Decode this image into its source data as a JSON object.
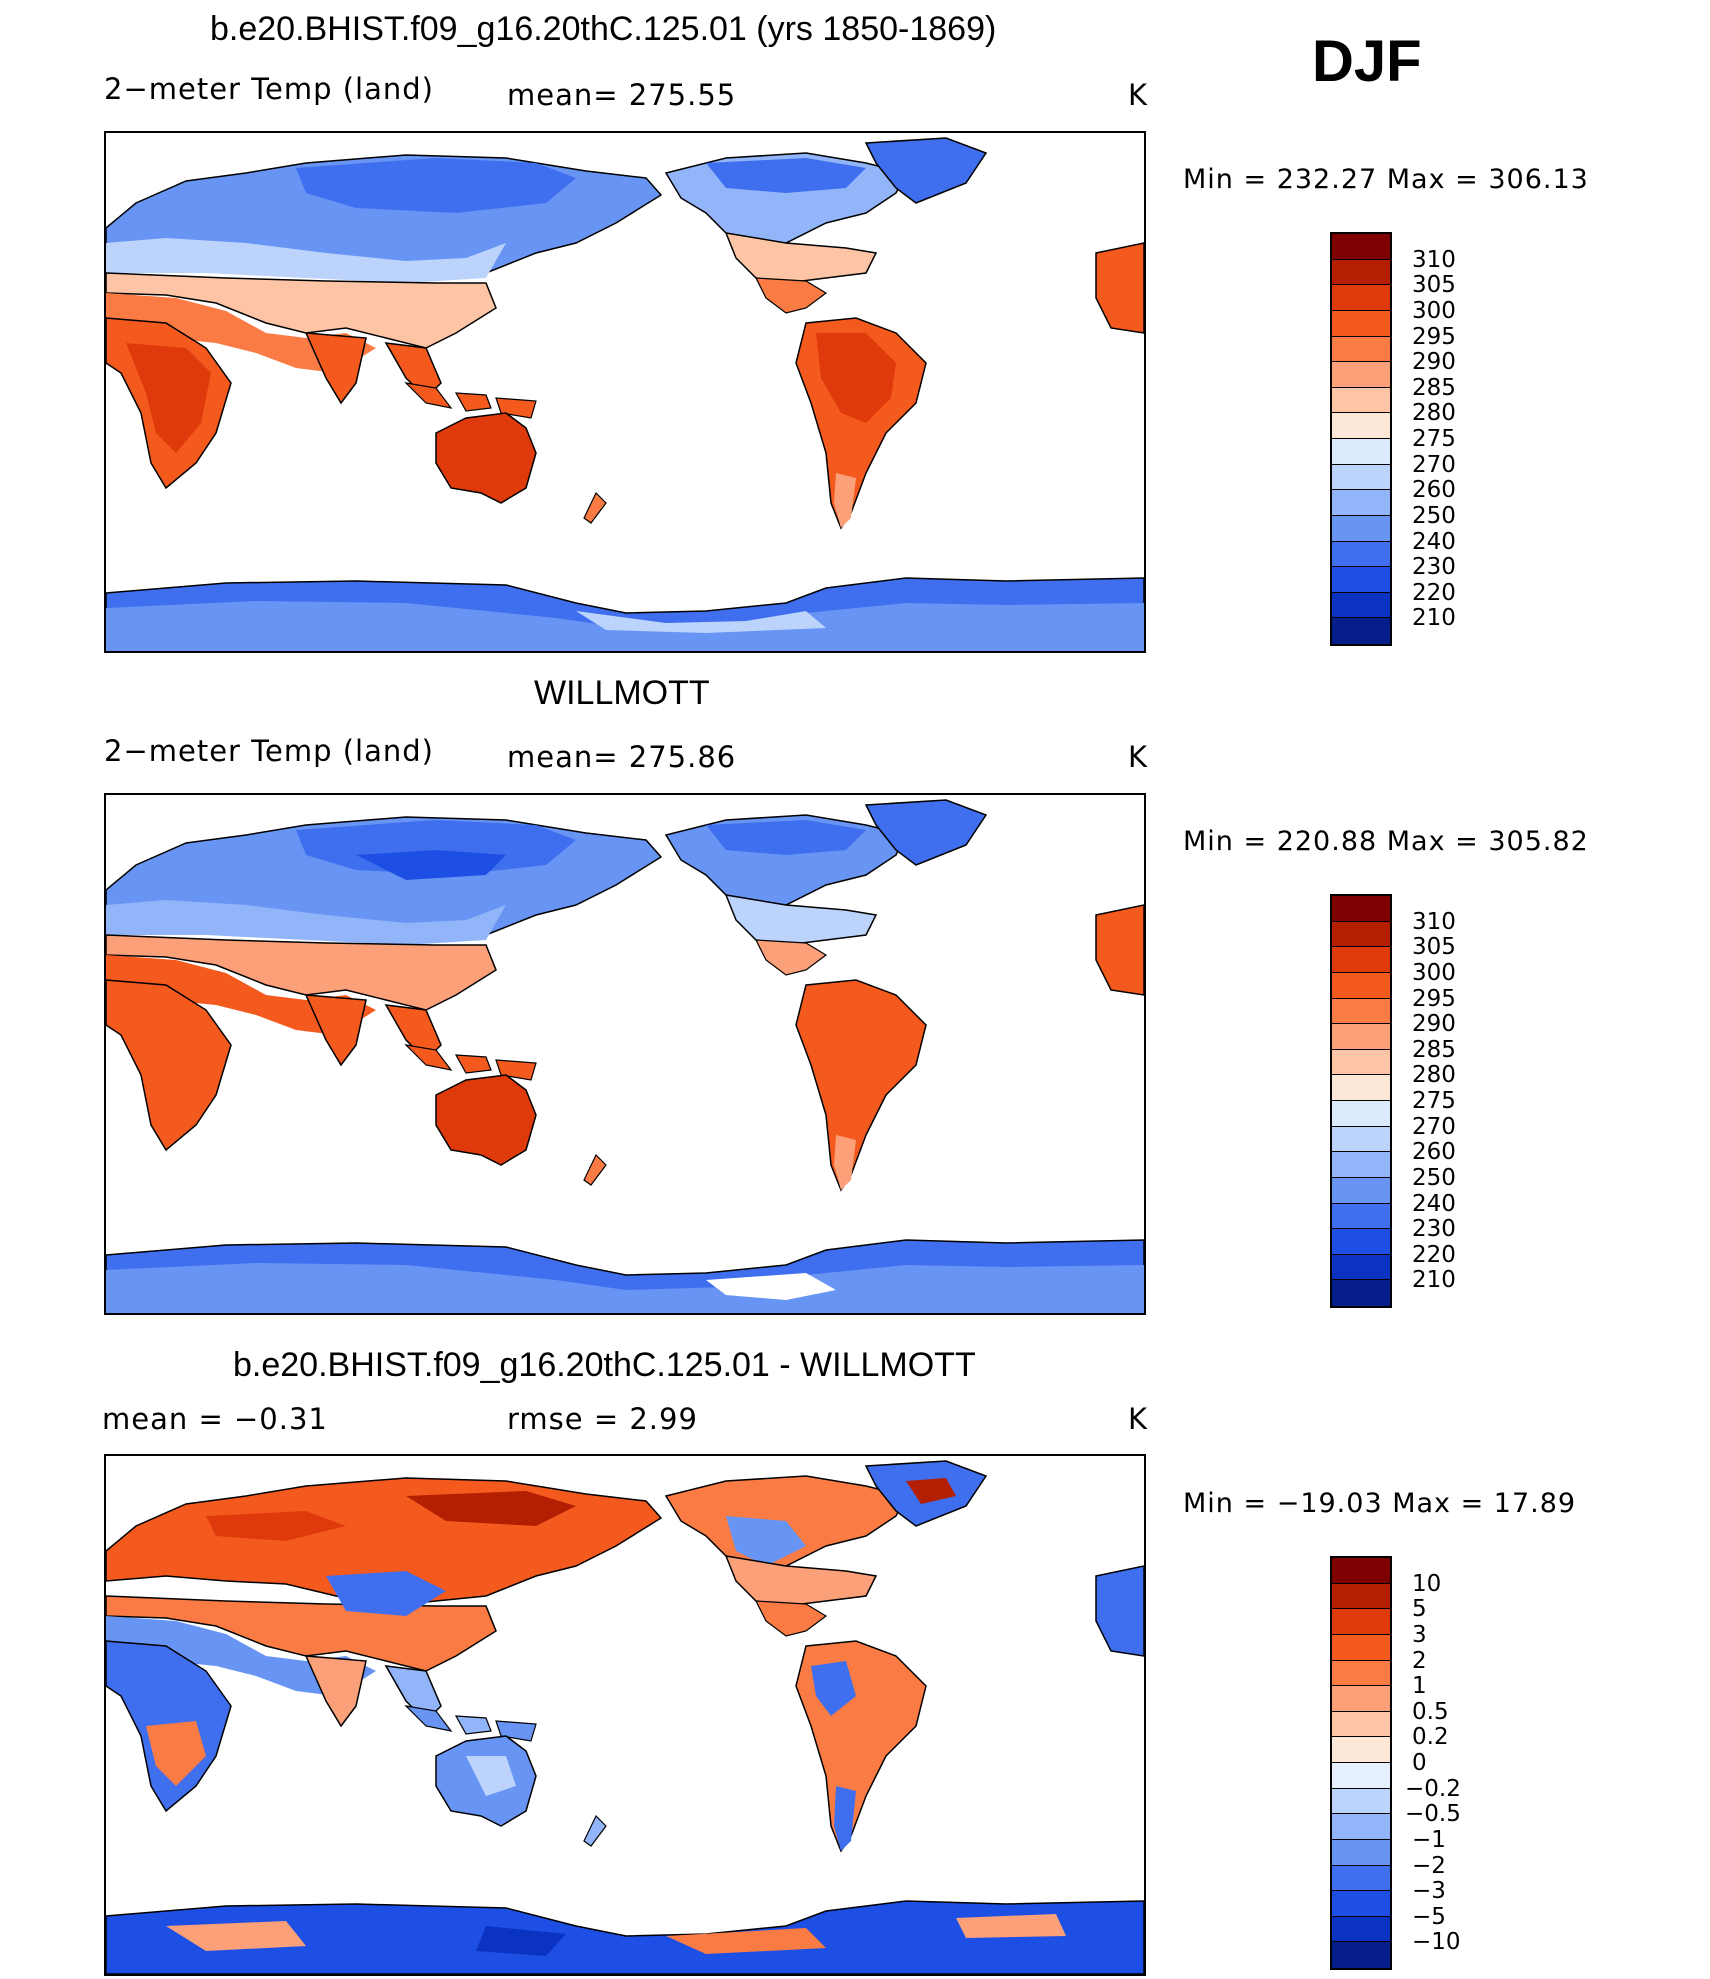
{
  "season": "DJF",
  "panels": [
    {
      "title": "b.e20.BHIST.f09_g16.20thC.125.01 (yrs 1850-1869)",
      "variable": "2−meter Temp (land)",
      "stat": "mean=  275.55",
      "units": "K",
      "minmax": "Min  =  232.27  Max  =  306.13",
      "colorbar_labels": [
        "310",
        "305",
        "300",
        "295",
        "290",
        "285",
        "280",
        "275",
        "270",
        "260",
        "250",
        "240",
        "230",
        "220",
        "210"
      ]
    },
    {
      "title": "WILLMOTT",
      "variable": "2−meter Temp (land)",
      "stat": "mean=  275.86",
      "units": "K",
      "minmax": "Min  =  220.88  Max  =  305.82",
      "colorbar_labels": [
        "310",
        "305",
        "300",
        "295",
        "290",
        "285",
        "280",
        "275",
        "270",
        "260",
        "250",
        "240",
        "230",
        "220",
        "210"
      ]
    },
    {
      "title": "b.e20.BHIST.f09_g16.20thC.125.01 - WILLMOTT",
      "variable": "mean  =     −0.31",
      "stat": "rmse  =     2.99",
      "units": "K",
      "minmax": "Min  =  −19.03  Max  =     17.89",
      "colorbar_labels": [
        "10",
        "5",
        "3",
        "2",
        "1",
        "0.5",
        "0.2",
        "0",
        "−0.2",
        "−0.5",
        "−1",
        "−2",
        "−3",
        "−5",
        "−10"
      ]
    }
  ],
  "colors": {
    "abs_scale": [
      "#7f0000",
      "#b31f00",
      "#de3a0b",
      "#f45a1e",
      "#fa7c44",
      "#fca07a",
      "#fdc5a6",
      "#fde7d6",
      "#dbeafd",
      "#bcd3fc",
      "#91b5f8",
      "#6894f4",
      "#3f6fee",
      "#1d4fe4",
      "#0a33c2",
      "#061e8c"
    ],
    "diff_scale": [
      "#7f0000",
      "#b31f00",
      "#de3a0b",
      "#f45a1e",
      "#fa7c44",
      "#fca07a",
      "#fdc5a6",
      "#fde7d6",
      "#e6f0fd",
      "#bcd3fc",
      "#91b5f8",
      "#6894f4",
      "#3f6fee",
      "#1d4fe4",
      "#0a33c2",
      "#061e8c"
    ]
  }
}
